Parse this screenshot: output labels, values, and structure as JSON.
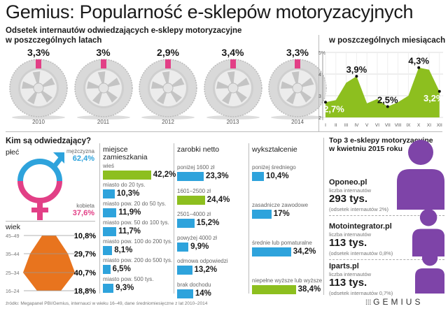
{
  "title": "Gemius: Popularność e-sklepów motoryzacyjnych",
  "subtitle_line1": "Odsetek internautów odwiedzających e-sklepy motoryzacyjne",
  "subtitle_line2": "w poszczególnych latach",
  "monthly_title": "w poszczególnych miesiącach",
  "visitors_title": "Kim są odwiedzający?",
  "colors": {
    "green": "#8dbf1f",
    "blue": "#2ea3dc",
    "pink": "#e23f86",
    "orange": "#e8741e",
    "purple": "#7e44a8"
  },
  "gender": {
    "title": "płeć",
    "male_label": "mężczyzna",
    "male_value": "62,4%",
    "female_label": "kobieta",
    "female_value": "37,6%"
  },
  "age": {
    "title": "wiek"
  },
  "footer": "źródło: Megapanel PBI/Gemius, internauci w wieku 16–49, dane średniomiesięczne z lat 2010–2014",
  "logo": "GEMIUS",
  "top3": {
    "title_line1": "Top 3 e-sklepy motoryzacyjne",
    "title_line2": "w kwietniu 2015 roku",
    "shops": [
      {
        "name": "Oponeo.pl",
        "users_label": "liczba internautów",
        "users": "293 tys.",
        "share": "(odsetek internautów 2%)"
      },
      {
        "name": "Motointegrator.pl",
        "users_label": "liczba internautów",
        "users": "113 tys.",
        "share": "(odsetek internautów 0,8%)"
      },
      {
        "name": "Iparts.pl",
        "users_label": "liczba internautów",
        "users": "113 tys.",
        "share": "(odsetek internautów 0,7%)"
      }
    ]
  },
  "chart_data": [
    {
      "type": "bar",
      "title": "w poszczególnych latach",
      "categories": [
        "2010",
        "2011",
        "2012",
        "2013",
        "2014"
      ],
      "values": [
        3.3,
        3.0,
        2.9,
        3.4,
        3.3
      ],
      "labels": [
        "3,3%",
        "3%",
        "2,9%",
        "3,4%",
        "3,3%"
      ]
    },
    {
      "type": "area",
      "title": "w poszczególnych miesiącach",
      "categories": [
        "I",
        "II",
        "III",
        "IV",
        "V",
        "VI",
        "VII",
        "VIII",
        "IX",
        "X",
        "XI",
        "XII"
      ],
      "values": [
        2.7,
        2.8,
        3.6,
        3.9,
        2.65,
        2.85,
        2.5,
        2.7,
        3.0,
        4.3,
        4.2,
        3.2
      ],
      "ylim": [
        2,
        5
      ],
      "yticks": [
        "2",
        "3",
        "4",
        "5%"
      ],
      "annotations": [
        {
          "month": "I",
          "label": "2,7%"
        },
        {
          "month": "IV",
          "label": "3,9%"
        },
        {
          "month": "VII",
          "label": "2,5%"
        },
        {
          "month": "X",
          "label": "4,3%"
        },
        {
          "month": "XII",
          "label": "3,2%"
        }
      ]
    },
    {
      "type": "bar",
      "title": "wiek",
      "categories": [
        "45–49",
        "35–44",
        "25–34",
        "16–24"
      ],
      "values": [
        10.8,
        29.7,
        40.7,
        18.8
      ],
      "labels": [
        "10,8%",
        "29,7%",
        "40,7%",
        "18,8%"
      ]
    },
    {
      "type": "bar",
      "title": "miejsce zamieszkania",
      "categories": [
        "wieś",
        "miasto do 20 tys.",
        "miasto pow. 20 do 50 tys.",
        "miasto pow. 50 do 100 tys.",
        "miasto pow. 100 do 200 tys.",
        "miasto pow. 200 do 500 tys.",
        "miasto pow. 500 tys."
      ],
      "values": [
        42.2,
        10.3,
        11.9,
        11.7,
        8.1,
        6.5,
        9.3
      ],
      "labels": [
        "42,2%",
        "10,3%",
        "11,9%",
        "11,7%",
        "8,1%",
        "6,5%",
        "9,3%"
      ]
    },
    {
      "type": "bar",
      "title": "zarobki netto",
      "categories": [
        "poniżej 1600 zł",
        "1601–2500 zł",
        "2501–4000 zł",
        "powyżej 4000 zł",
        "odmowa odpowiedzi",
        "brak dochodu"
      ],
      "values": [
        23.3,
        24.4,
        15.2,
        9.9,
        13.2,
        14
      ],
      "labels": [
        "23,3%",
        "24,4%",
        "15,2%",
        "9,9%",
        "13,2%",
        "14%"
      ]
    },
    {
      "type": "bar",
      "title": "wykształcenie",
      "categories": [
        "poniżej średniego",
        "zasadnicze zawodowe",
        "średnie lub pomaturalne",
        "niepełne wyższe lub wyższe"
      ],
      "values": [
        10.4,
        17,
        34.2,
        38.4
      ],
      "labels": [
        "10,4%",
        "17%",
        "34,2%",
        "38,4%"
      ]
    }
  ]
}
